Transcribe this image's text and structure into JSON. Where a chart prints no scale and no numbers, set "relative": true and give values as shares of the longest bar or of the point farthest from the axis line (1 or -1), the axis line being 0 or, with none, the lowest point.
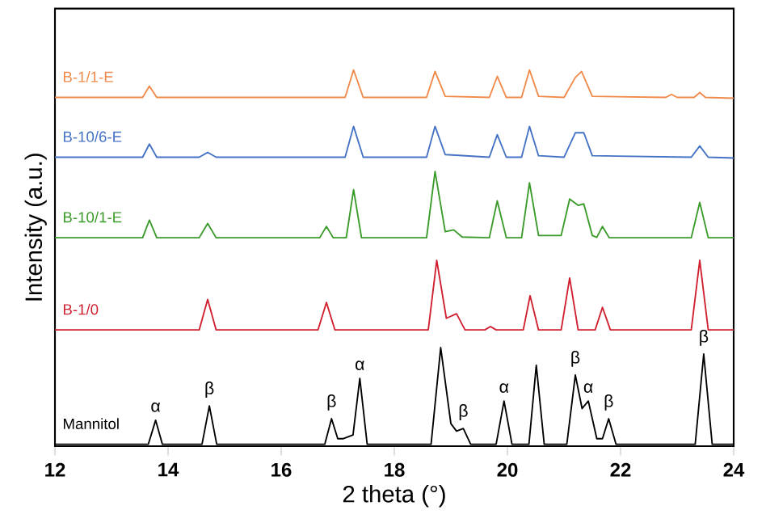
{
  "chart_data": {
    "type": "line",
    "relative": true,
    "xlabel": "2 theta (°)",
    "ylabel": "Intensity (a.u.)",
    "xlim": [
      12,
      24
    ],
    "xticks": [
      12,
      14,
      16,
      18,
      20,
      22,
      24
    ],
    "grid": false,
    "marker": "none",
    "line_style": "solid",
    "series": [
      {
        "name": "B-1/1-E",
        "color": "#f08a4b",
        "x": [
          12,
          13.55,
          13.67,
          13.8,
          17.13,
          17.28,
          17.45,
          18.57,
          18.72,
          18.9,
          19.68,
          19.82,
          19.98,
          20.25,
          20.39,
          20.55,
          21.0,
          21.2,
          21.31,
          21.5,
          22.8,
          22.9,
          23.0,
          23.3,
          23.4,
          23.5,
          24
        ],
        "values": [
          0.927,
          0.927,
          0.957,
          0.927,
          0.927,
          1.0,
          0.927,
          0.927,
          0.996,
          0.93,
          0.927,
          0.983,
          0.927,
          0.927,
          1.0,
          0.93,
          0.927,
          0.98,
          0.996,
          0.93,
          0.927,
          0.935,
          0.927,
          0.927,
          0.94,
          0.927,
          0.925
        ]
      },
      {
        "name": "B-10/6-E",
        "color": "#4472c4",
        "x": [
          12,
          13.55,
          13.67,
          13.8,
          14.55,
          14.7,
          14.85,
          17.13,
          17.28,
          17.45,
          18.57,
          18.72,
          18.9,
          19.68,
          19.82,
          19.98,
          20.25,
          20.39,
          20.55,
          21.0,
          21.2,
          21.35,
          21.5,
          23.25,
          23.4,
          23.55,
          24
        ],
        "values": [
          0.768,
          0.768,
          0.803,
          0.768,
          0.768,
          0.781,
          0.768,
          0.768,
          0.85,
          0.768,
          0.768,
          0.85,
          0.775,
          0.768,
          0.828,
          0.768,
          0.768,
          0.85,
          0.772,
          0.768,
          0.833,
          0.833,
          0.772,
          0.768,
          0.798,
          0.768,
          0.766
        ]
      },
      {
        "name": "B-10/1-E",
        "color": "#3a9a2a",
        "x": [
          12,
          13.55,
          13.67,
          13.8,
          14.55,
          14.7,
          14.85,
          16.68,
          16.8,
          16.92,
          17.15,
          17.28,
          17.42,
          18.57,
          18.72,
          18.9,
          19.05,
          19.2,
          19.68,
          19.82,
          19.98,
          20.25,
          20.39,
          20.55,
          20.95,
          21.1,
          21.25,
          21.35,
          21.5,
          21.58,
          21.68,
          21.8,
          23.25,
          23.4,
          23.55,
          24
        ],
        "values": [
          0.554,
          0.554,
          0.601,
          0.554,
          0.554,
          0.592,
          0.554,
          0.554,
          0.584,
          0.554,
          0.554,
          0.682,
          0.554,
          0.554,
          0.73,
          0.57,
          0.575,
          0.556,
          0.554,
          0.652,
          0.554,
          0.554,
          0.7,
          0.56,
          0.56,
          0.657,
          0.64,
          0.644,
          0.56,
          0.555,
          0.584,
          0.554,
          0.554,
          0.648,
          0.554,
          0.554
        ]
      },
      {
        "name": "B-1/0",
        "color": "#d02030",
        "x": [
          12,
          14.55,
          14.7,
          14.85,
          16.65,
          16.8,
          16.95,
          18.6,
          18.75,
          18.92,
          19.1,
          19.25,
          19.6,
          19.7,
          19.8,
          20.28,
          20.4,
          20.55,
          20.95,
          21.1,
          21.25,
          21.55,
          21.68,
          21.82,
          23.25,
          23.4,
          23.55,
          24
        ],
        "values": [
          0.309,
          0.309,
          0.39,
          0.309,
          0.309,
          0.382,
          0.309,
          0.309,
          0.494,
          0.34,
          0.352,
          0.309,
          0.309,
          0.318,
          0.309,
          0.309,
          0.4,
          0.309,
          0.309,
          0.447,
          0.309,
          0.309,
          0.369,
          0.309,
          0.309,
          0.494,
          0.309,
          0.309
        ]
      },
      {
        "name": "Mannitol",
        "color": "#000000",
        "x": [
          12,
          13.65,
          13.78,
          13.9,
          14.6,
          14.73,
          14.86,
          16.77,
          16.89,
          17.0,
          17.1,
          17.27,
          17.39,
          17.52,
          18.65,
          18.82,
          19.0,
          19.1,
          19.22,
          19.35,
          19.8,
          19.94,
          20.08,
          20.38,
          20.51,
          20.65,
          21.05,
          21.2,
          21.32,
          21.43,
          21.58,
          21.68,
          21.79,
          21.92,
          23.32,
          23.47,
          23.62,
          24
        ],
        "values": [
          0.005,
          0.005,
          0.069,
          0.005,
          0.005,
          0.107,
          0.005,
          0.005,
          0.073,
          0.02,
          0.02,
          0.03,
          0.18,
          0.005,
          0.005,
          0.262,
          0.06,
          0.04,
          0.047,
          0.005,
          0.005,
          0.12,
          0.005,
          0.005,
          0.215,
          0.005,
          0.005,
          0.189,
          0.1,
          0.12,
          0.02,
          0.02,
          0.073,
          0.005,
          0.005,
          0.245,
          0.005,
          0.005
        ]
      }
    ],
    "annotations": [
      {
        "text": "α",
        "x": 13.78,
        "y": 0.069
      },
      {
        "text": "β",
        "x": 14.73,
        "y": 0.107
      },
      {
        "text": "β",
        "x": 16.89,
        "y": 0.073
      },
      {
        "text": "α",
        "x": 17.39,
        "y": 0.18
      },
      {
        "text": "β",
        "x": 19.22,
        "y": 0.047
      },
      {
        "text": "α",
        "x": 19.94,
        "y": 0.12
      },
      {
        "text": "β",
        "x": 21.2,
        "y": 0.189
      },
      {
        "text": "α",
        "x": 21.43,
        "y": 0.12
      },
      {
        "text": "β",
        "x": 21.79,
        "y": 0.073
      },
      {
        "text": "β",
        "x": 23.47,
        "y": 0.245
      }
    ]
  }
}
